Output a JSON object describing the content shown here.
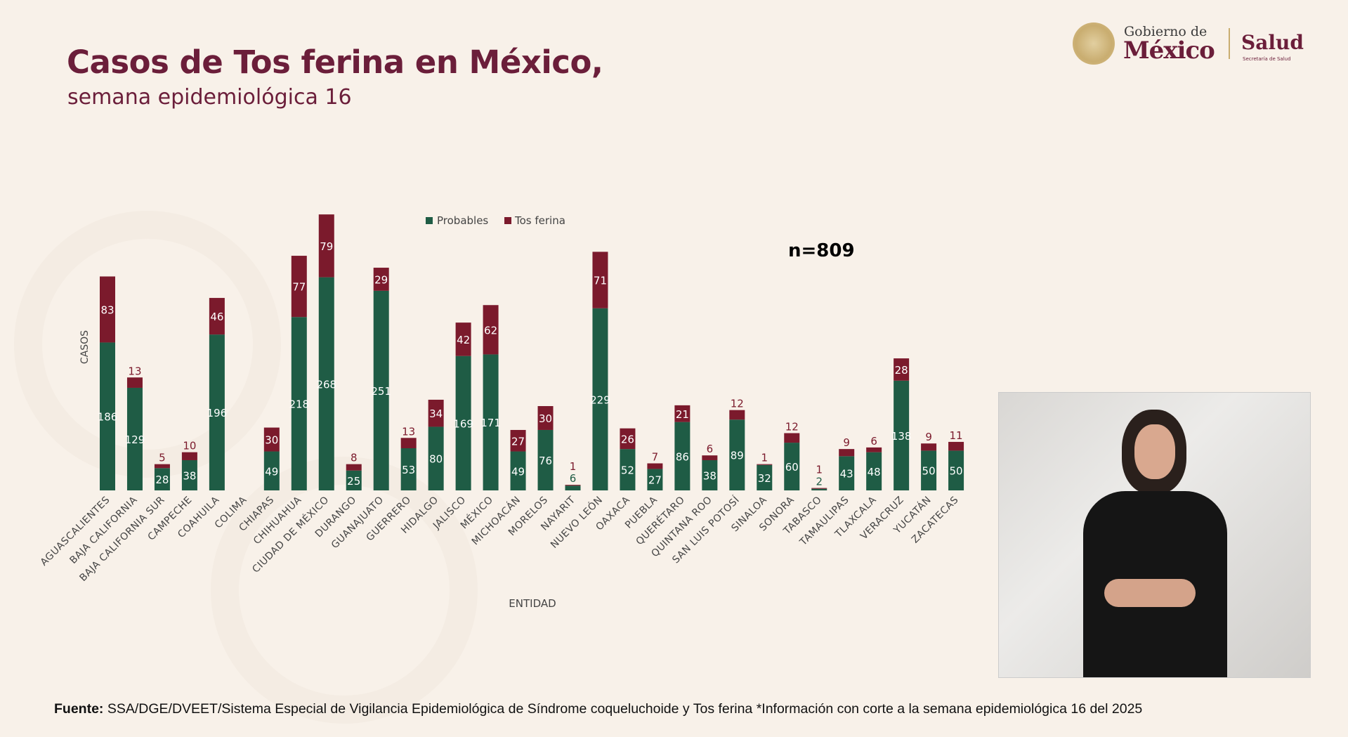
{
  "header": {
    "title": "Casos de Tos ferina en México,",
    "subtitle": "semana epidemiológica 16"
  },
  "logo": {
    "gobierno": "Gobierno de",
    "mexico": "México",
    "salud": "Salud",
    "secretaria": "Secretaría de Salud"
  },
  "chart_data": {
    "type": "bar",
    "stacked": true,
    "xlabel": "ENTIDAD",
    "ylabel": "CASOS",
    "annotation": "n=809",
    "legend_position": "top-center",
    "grid": false,
    "categories": [
      "AGUASCALIENTES",
      "BAJA CALIFORNIA",
      "BAJA CALIFORNIA SUR",
      "CAMPECHE",
      "COAHUILA",
      "COLIMA",
      "CHIAPAS",
      "CHIHUAHUA",
      "CIUDAD DE MÉXICO",
      "DURANGO",
      "GUANAJUATO",
      "GUERRERO",
      "HIDALGO",
      "JALISCO",
      "MÉXICO",
      "MICHOACÁN",
      "MORELOS",
      "NAYARIT",
      "NUEVO LEÓN",
      "OAXACA",
      "PUEBLA",
      "QUERÉTARO",
      "QUINTANA ROO",
      "SAN LUIS POTOSÍ",
      "SINALOA",
      "SONORA",
      "TABASCO",
      "TAMAULIPAS",
      "TLAXCALA",
      "VERACRUZ",
      "YUCATÁN",
      "ZACATECAS"
    ],
    "series": [
      {
        "name": "Probables",
        "color": "#1f5c45",
        "values": [
          186,
          129,
          28,
          38,
          196,
          0,
          49,
          218,
          268,
          25,
          251,
          53,
          80,
          169,
          171,
          49,
          76,
          6,
          229,
          52,
          27,
          86,
          38,
          89,
          32,
          60,
          2,
          43,
          48,
          138,
          50,
          50
        ]
      },
      {
        "name": "Tos ferina",
        "color": "#7b1a2c",
        "values": [
          83,
          13,
          5,
          10,
          46,
          0,
          30,
          77,
          79,
          8,
          29,
          13,
          34,
          42,
          62,
          27,
          30,
          1,
          71,
          26,
          7,
          21,
          6,
          12,
          1,
          12,
          1,
          9,
          6,
          28,
          9,
          11
        ]
      }
    ]
  },
  "footer": {
    "source_label": "Fuente:",
    "source_text": " SSA/DGE/DVEET/Sistema Especial de Vigilancia Epidemiológica de Síndrome coqueluchoide y Tos ferina  *Información con corte a la semana epidemiológica 16 del 2025"
  },
  "video": {
    "description_icon": "sign-language-interpreter"
  }
}
